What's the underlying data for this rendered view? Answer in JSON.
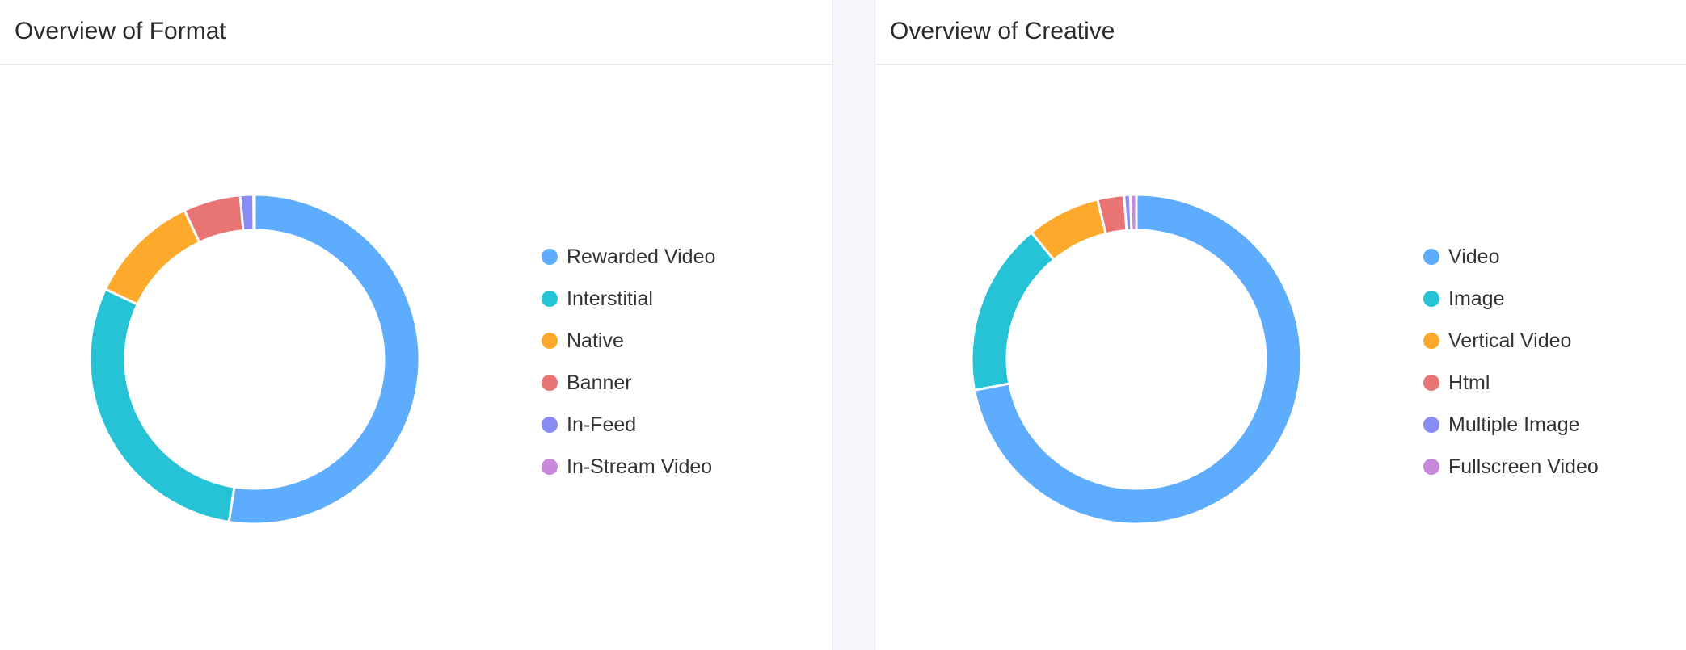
{
  "panels": [
    {
      "title": "Overview of Format",
      "chart_data": {
        "type": "pie",
        "variant": "donut",
        "categories": [
          "Rewarded Video",
          "Interstitial",
          "Native",
          "Banner",
          "In-Feed",
          "In-Stream Video"
        ],
        "values": [
          52.5,
          29.5,
          11.0,
          5.6,
          1.3,
          0.1
        ],
        "colors": [
          "#5eacfd",
          "#26c2d6",
          "#fda92b",
          "#e87474",
          "#8a8cf6",
          "#c889dd"
        ],
        "legend_position": "right",
        "title": "Overview of Format"
      }
    },
    {
      "title": "Overview of Creative",
      "chart_data": {
        "type": "pie",
        "variant": "donut",
        "categories": [
          "Video",
          "Image",
          "Vertical Video",
          "Html",
          "Multiple Image",
          "Fullscreen Video"
        ],
        "values": [
          72.0,
          17.0,
          7.2,
          2.6,
          0.6,
          0.6
        ],
        "colors": [
          "#5eacfd",
          "#26c2d6",
          "#fda92b",
          "#e87474",
          "#8a8cf6",
          "#c889dd"
        ],
        "legend_position": "right",
        "title": "Overview of Creative"
      }
    }
  ]
}
